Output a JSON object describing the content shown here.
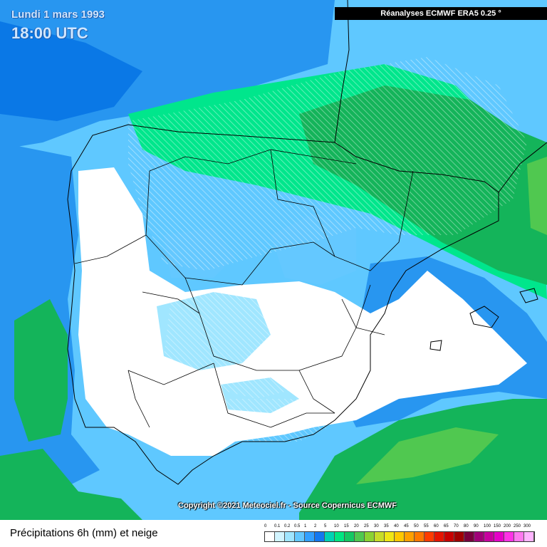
{
  "header": {
    "date": "Lundi 1 mars 1993",
    "time": "18:00 UTC",
    "source": "Réanalyses ECMWF ERA5 0.25 °"
  },
  "footer": {
    "copyright": "Copyright ©2021 Meteociel.fr - Source Copernicus ECMWF",
    "title": "Précipitations 6h (mm) et neige"
  },
  "legend": {
    "labels": [
      "0",
      "0.1",
      "0.2",
      "0.5",
      "1",
      "2",
      "5",
      "10",
      "15",
      "20",
      "25",
      "30",
      "35",
      "40",
      "45",
      "50",
      "55",
      "60",
      "65",
      "70",
      "80",
      "90",
      "100",
      "150",
      "200",
      "250",
      "300"
    ],
    "colors": [
      "#ffffff",
      "#d2f5ff",
      "#a0e6ff",
      "#64c8ff",
      "#32a0ff",
      "#1478f0",
      "#00d2b4",
      "#00e682",
      "#14c864",
      "#50c850",
      "#8cd232",
      "#c8dc28",
      "#f0e614",
      "#ffc800",
      "#ffa000",
      "#ff7800",
      "#ff3c00",
      "#e61400",
      "#c80000",
      "#a00000",
      "#78003c",
      "#a00078",
      "#c800a0",
      "#e600c8",
      "#ff32e6",
      "#ff78f0",
      "#ffb4ff"
    ]
  },
  "map_colors": {
    "sea_light": "#5fc8ff",
    "sea_mid": "#2896f0",
    "sea_deep": "#0a78e6",
    "precip_green": "#00e68c",
    "precip_dark_green": "#14b45a",
    "precip_lime": "#50c850",
    "dry_land": "#ffffff"
  }
}
